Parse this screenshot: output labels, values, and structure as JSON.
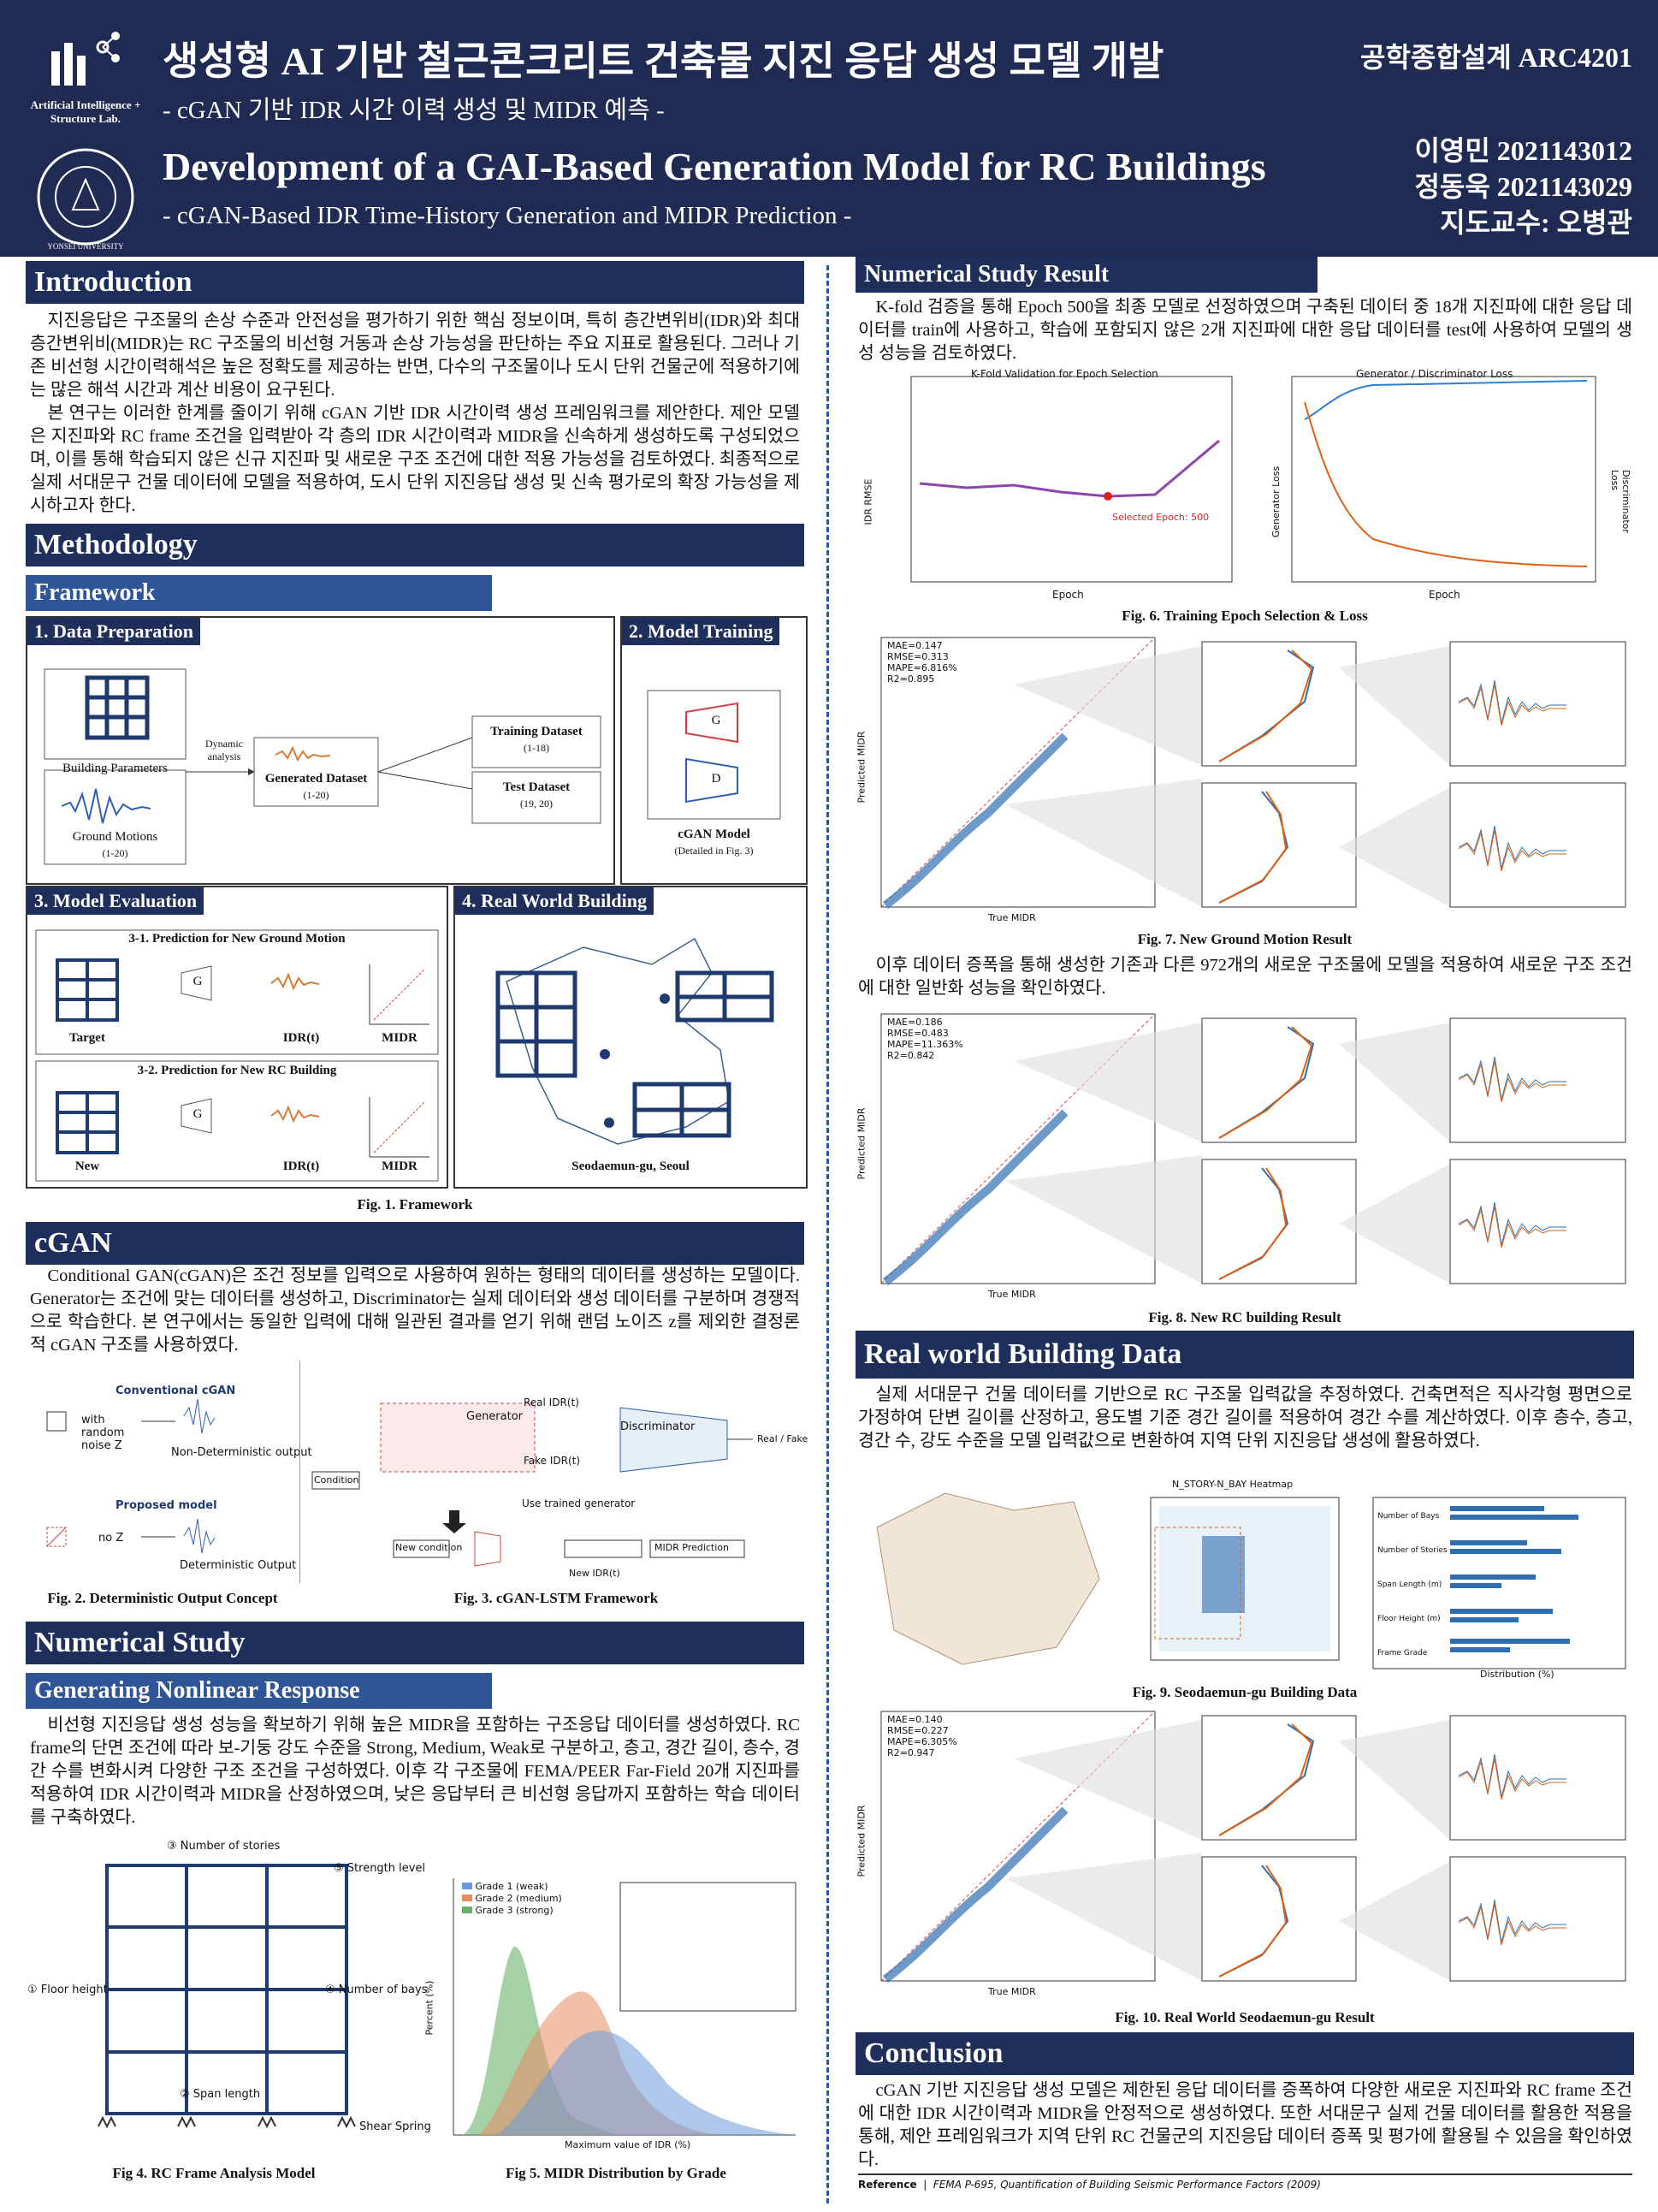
{
  "header": {
    "lab": "Artificial Intelligence + Structure Lab.",
    "university": "YONSEI UNIVERSITY",
    "title_ko": "생성형 AI 기반 철근콘크리트 건축물 지진 응답 생성 모델 개발",
    "subtitle_ko": "- cGAN 기반 IDR 시간 이력 생성 및 MIDR 예측 -",
    "title_en": "Development of a GAI-Based Generation Model for RC Buildings",
    "subtitle_en": "- cGAN-Based IDR Time-History Generation and MIDR Prediction -",
    "course": "공학종합설계 ARC4201",
    "authors": [
      "이영민 2021143012",
      "정동욱 2021143029",
      "지도교수: 오병관"
    ]
  },
  "introduction": {
    "heading": "Introduction",
    "paragraphs": [
      "지진응답은 구조물의 손상 수준과 안전성을 평가하기 위한 핵심 정보이며, 특히 층간변위비(IDR)와 최대 층간변위비(MIDR)는 RC 구조물의 비선형 거동과 손상 가능성을 판단하는 주요 지표로 활용된다. 그러나 기존 비선형 시간이력해석은 높은 정확도를 제공하는 반면, 다수의 구조물이나 도시 단위 건물군에 적용하기에는 많은 해석 시간과 계산 비용이 요구된다.",
      "본 연구는 이러한 한계를 줄이기 위해 cGAN 기반 IDR 시간이력 생성 프레임워크를 제안한다. 제안 모델은 지진파와 RC frame 조건을 입력받아 각 층의 IDR 시간이력과 MIDR을 신속하게 생성하도록 구성되었으며, 이를 통해 학습되지 않은 신규 지진파 및 새로운 구조 조건에 대한 적용 가능성을 검토하였다. 최종적으로 실제 서대문구 건물 데이터에 모델을 적용하여, 도시 단위 지진응답 생성 및 신속 평가로의 확장 가능성을 제시하고자 한다."
    ]
  },
  "methodology": {
    "heading": "Methodology",
    "framework_heading": "Framework",
    "framework": {
      "panels": [
        "1. Data Preparation",
        "2. Model Training",
        "3. Model Evaluation",
        "4. Real World Building"
      ],
      "building_parameters": "Building Parameters",
      "ground_motions": "Ground Motions",
      "ground_motions_range": "(1-20)",
      "dynamic_analysis": "Dynamic analysis",
      "generated_dataset": "Generated Dataset",
      "generated_range": "(1-20)",
      "training_dataset": "Training Dataset",
      "training_range": "(1-18)",
      "test_dataset": "Test Dataset",
      "test_range": "(19, 20)",
      "generator": "G",
      "discriminator": "D",
      "cgan_model": "cGAN Model",
      "cgan_note": "(Detailed in Fig. 3)",
      "eval_1": "3-1. Prediction for New Ground Motion",
      "eval_2": "3-2. Prediction for New RC Building",
      "target": "Target",
      "new": "New",
      "idr": "IDR(t)",
      "midr": "MIDR",
      "location": "Seodaemun-gu, Seoul",
      "caption": "Fig. 1. Framework"
    },
    "cgan_heading": "cGAN",
    "cgan_text": "Conditional GAN(cGAN)은 조건 정보를 입력으로 사용하여 원하는 형태의 데이터를 생성하는 모델이다. Generator는 조건에 맞는 데이터를 생성하고, Discriminator는 실제 데이터와 생성 데이터를 구분하며 경쟁적으로 학습한다. 본 연구에서는 동일한 입력에 대해 일관된 결과를 얻기 위해 랜덤 노이즈 z를 제외한 결정론적 cGAN 구조를 사용하였다.",
    "fig2": {
      "conventional": "Conventional cGAN",
      "with_noise": "with random noise Z",
      "nondeterministic": "Non-Deterministic output",
      "proposed": "Proposed model",
      "no_z": "no Z",
      "deterministic": "Deterministic Output",
      "caption": "Fig. 2. Deterministic Output Concept"
    },
    "fig3": {
      "generator": "Generator",
      "discriminator": "Discriminator",
      "condition": "Condition",
      "real": "Real IDR(t)",
      "fake": "Fake IDR(t)",
      "real_fake": "Real / Fake",
      "use_trained": "Use trained generator",
      "new_condition": "New condition",
      "new_idr": "New IDR(t)",
      "midr_prediction": "MIDR Prediction",
      "caption": "Fig. 3. cGAN-LSTM Framework"
    }
  },
  "numerical_study": {
    "heading": "Numerical Study",
    "sub_heading": "Generating Nonlinear Response",
    "text": "비선형 지진응답 생성 성능을 확보하기 위해 높은 MIDR을 포함하는 구조응답 데이터를 생성하였다. RC frame의 단면 조건에 따라 보-기둥 강도 수준을 Strong, Medium, Weak로 구분하고, 층고, 경간 길이, 층수, 경간 수를 변화시켜 다양한 구조 조건을 구성하였다. 이후 각 구조물에 FEMA/PEER Far-Field 20개 지진파를 적용하여 IDR 시간이력과 MIDR을 산정하였으며, 낮은 응답부터 큰 비선형 응답까지 포함하는 학습 데이터를 구축하였다.",
    "fig4": {
      "labels": [
        "③ Number of stories",
        "⑤ Strength level",
        "① Floor height",
        "④ Number of bays",
        "② Span length",
        "Shear Spring"
      ],
      "caption": "Fig 4. RC Frame Analysis Model"
    },
    "fig5": {
      "legend": [
        "Grade 1 (weak)",
        "Grade 2 (medium)",
        "Grade 3 (strong)"
      ],
      "xlabel": "Maximum value of IDR (%)",
      "ylabel": "Percent (%)",
      "caption": "Fig 5. MIDR Distribution by Grade"
    }
  },
  "results": {
    "heading": "Numerical Study Result",
    "text_1": "K-fold 검증을 통해 Epoch 500을 최종 모델로 선정하였으며 구축된 데이터 중 18개 지진파에 대한 응답 데이터를 train에 사용하고, 학습에 포함되지 않은 2개 지진파에 대한 응답 데이터를 test에 사용하여 모델의 생성 성능을 검토하였다.",
    "fig6": {
      "left_title": "K-Fold Validation for Epoch Selection",
      "right_title": "Generator / Discriminator Loss",
      "selected": "Selected Epoch: 500",
      "xlabel": "Epoch",
      "ylabel_left": "IDR RMSE",
      "ylabel_gen": "Generator Loss",
      "ylabel_disc": "Discriminator Loss",
      "caption": "Fig. 6. Training Epoch Selection & Loss"
    },
    "fig7": {
      "stats": [
        "MAE=0.147",
        "RMSE=0.313",
        "MAPE=6.816%",
        "R2=0.895"
      ],
      "caption": "Fig. 7. New Ground Motion Result"
    },
    "text_2": "이후 데이터 증폭을 통해 생성한 기존과 다른 972개의 새로운 구조물에 모델을 적용하여 새로운 구조 조건에 대한 일반화 성능을 확인하였다.",
    "fig8": {
      "stats": [
        "MAE=0.186",
        "RMSE=0.483",
        "MAPE=11.363%",
        "R2=0.842"
      ],
      "caption": "Fig. 8. New RC building Result"
    },
    "xlabel": "True MIDR",
    "ylabel": "Predicted MIDR"
  },
  "real_world": {
    "heading": "Real world Building Data",
    "text": "실제 서대문구 건물 데이터를 기반으로 RC 구조물 입력값을 추정하였다. 건축면적은 직사각형 평면으로 가정하여 단변 길이를 산정하고, 용도별 기준 경간 길이를 적용하여 경간 수를 계산하였다. 이후 층수, 층고, 경간 수, 강도 수준을 모델 입력값으로 변환하여 지역 단위 지진응답 생성에 활용하였다.",
    "fig9": {
      "heatmap_title": "N_STORY-N_BAY Heatmap",
      "bar_labels": [
        "Number of Bays",
        "Number of Stories",
        "Span Length (m)",
        "Floor Height (m)",
        "Frame Grade"
      ],
      "bar_xlabel": "Distribution (%)",
      "caption": "Fig. 9. Seodaemun-gu Building Data"
    },
    "fig10": {
      "stats": [
        "MAE=0.140",
        "RMSE=0.227",
        "MAPE=6.305%",
        "R2=0.947"
      ],
      "caption": "Fig. 10. Real World Seodaemun-gu Result"
    }
  },
  "conclusion": {
    "heading": "Conclusion",
    "text": "cGAN 기반 지진응답 생성 모델은 제한된 응답 데이터를 증폭하여 다양한 새로운 지진파와 RC frame 조건에 대한 IDR 시간이력과 MIDR을 안정적으로 생성하였다. 또한 서대문구 실제 건물 데이터를 활용한 적용을 통해, 제안 프레임워크가 지역 단위 RC 건물군의 지진응답 데이터 증폭 및 평가에 활용될 수 있음을 확인하였다.",
    "reference_label": "Reference",
    "reference": "FEMA P-695, Quantification of Building Seismic Performance Factors (2009)"
  }
}
